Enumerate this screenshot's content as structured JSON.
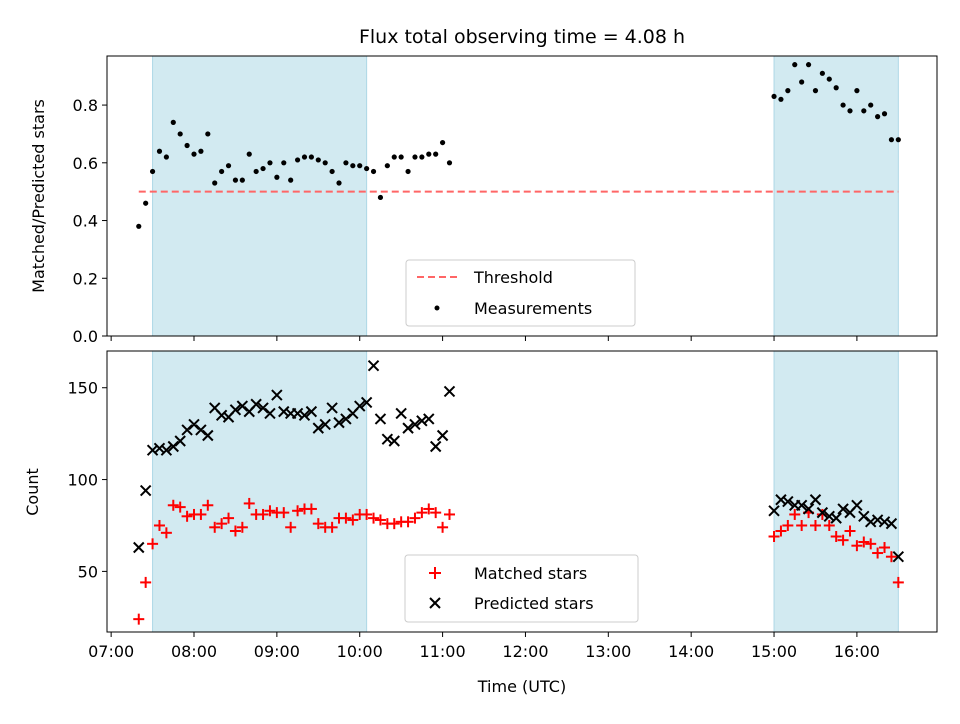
{
  "title": "Flux total observing time = 4.08 h",
  "xlabel": "Time (UTC)",
  "x_ticks": [
    "07:00",
    "08:00",
    "09:00",
    "10:00",
    "11:00",
    "12:00",
    "13:00",
    "14:00",
    "15:00",
    "16:00"
  ],
  "colors": {
    "shade": "#add8e6",
    "threshold": "#ff6666",
    "measurements": "#000000",
    "matched": "#ff0000",
    "predicted": "#000000"
  },
  "chart_data": [
    {
      "type": "scatter",
      "panel": "top",
      "title": "Flux total observing time = 4.08 h",
      "xlabel": "",
      "ylabel": "Matched/Predicted stars",
      "xlim": [
        "06:57",
        "16:58"
      ],
      "ylim": [
        0,
        0.97
      ],
      "y_ticks": [
        "0.0",
        "0.2",
        "0.4",
        "0.6",
        "0.8"
      ],
      "shaded_intervals": [
        [
          "07:30",
          "10:05"
        ],
        [
          "15:00",
          "16:30"
        ]
      ],
      "legend": {
        "placement": "lower center",
        "entries": [
          "Threshold",
          "Measurements"
        ]
      },
      "threshold": {
        "name": "Threshold",
        "y": 0.5,
        "x_range": [
          "07:20",
          "16:30"
        ],
        "style": "dashed"
      },
      "series": [
        {
          "name": "Measurements",
          "marker": "dot",
          "x": [
            "07:20",
            "07:25",
            "07:30",
            "07:35",
            "07:40",
            "07:45",
            "07:50",
            "07:55",
            "08:00",
            "08:05",
            "08:10",
            "08:15",
            "08:20",
            "08:25",
            "08:30",
            "08:35",
            "08:40",
            "08:45",
            "08:50",
            "08:55",
            "09:00",
            "09:05",
            "09:10",
            "09:15",
            "09:20",
            "09:25",
            "09:30",
            "09:35",
            "09:40",
            "09:45",
            "09:50",
            "09:55",
            "10:00",
            "10:05",
            "10:10",
            "10:15",
            "10:20",
            "10:25",
            "10:30",
            "10:35",
            "10:40",
            "10:45",
            "10:50",
            "10:55",
            "11:00",
            "11:05",
            "15:00",
            "15:05",
            "15:10",
            "15:15",
            "15:20",
            "15:25",
            "15:30",
            "15:35",
            "15:40",
            "15:45",
            "15:50",
            "15:55",
            "16:00",
            "16:05",
            "16:10",
            "16:15",
            "16:20",
            "16:25",
            "16:30"
          ],
          "y": [
            0.38,
            0.46,
            0.57,
            0.64,
            0.62,
            0.74,
            0.7,
            0.66,
            0.63,
            0.64,
            0.7,
            0.53,
            0.57,
            0.59,
            0.54,
            0.54,
            0.63,
            0.57,
            0.58,
            0.6,
            0.55,
            0.6,
            0.54,
            0.61,
            0.62,
            0.62,
            0.61,
            0.6,
            0.57,
            0.53,
            0.6,
            0.59,
            0.59,
            0.58,
            0.57,
            0.48,
            0.59,
            0.62,
            0.62,
            0.57,
            0.62,
            0.62,
            0.63,
            0.63,
            0.67,
            0.6,
            0.83,
            0.82,
            0.85,
            0.94,
            0.88,
            0.94,
            0.85,
            0.91,
            0.89,
            0.86,
            0.8,
            0.78,
            0.85,
            0.78,
            0.8,
            0.76,
            0.77,
            0.68,
            0.68
          ]
        }
      ]
    },
    {
      "type": "scatter",
      "panel": "bottom",
      "xlabel": "Time (UTC)",
      "ylabel": "Count",
      "xlim": [
        "06:57",
        "16:58"
      ],
      "ylim": [
        17,
        170
      ],
      "y_ticks": [
        "50",
        "100",
        "150"
      ],
      "shaded_intervals": [
        [
          "07:30",
          "10:05"
        ],
        [
          "15:00",
          "16:30"
        ]
      ],
      "legend": {
        "placement": "lower center",
        "entries": [
          "Matched stars",
          "Predicted stars"
        ]
      },
      "series": [
        {
          "name": "Matched stars",
          "marker": "plus",
          "x": [
            "07:20",
            "07:25",
            "07:30",
            "07:35",
            "07:40",
            "07:45",
            "07:50",
            "07:55",
            "08:00",
            "08:05",
            "08:10",
            "08:15",
            "08:20",
            "08:25",
            "08:30",
            "08:35",
            "08:40",
            "08:45",
            "08:50",
            "08:55",
            "09:00",
            "09:05",
            "09:10",
            "09:15",
            "09:20",
            "09:25",
            "09:30",
            "09:35",
            "09:40",
            "09:45",
            "09:50",
            "09:55",
            "10:00",
            "10:05",
            "10:10",
            "10:15",
            "10:20",
            "10:25",
            "10:30",
            "10:35",
            "10:40",
            "10:45",
            "10:50",
            "10:55",
            "11:00",
            "11:05",
            "15:00",
            "15:05",
            "15:10",
            "15:15",
            "15:20",
            "15:25",
            "15:30",
            "15:35",
            "15:40",
            "15:45",
            "15:50",
            "15:55",
            "16:00",
            "16:05",
            "16:10",
            "16:15",
            "16:20",
            "16:25",
            "16:30"
          ],
          "y": [
            24,
            44,
            65,
            75,
            71,
            86,
            85,
            80,
            81,
            81,
            86,
            74,
            76,
            79,
            72,
            74,
            87,
            81,
            81,
            83,
            82,
            82,
            74,
            83,
            84,
            84,
            76,
            74,
            74,
            79,
            79,
            78,
            81,
            81,
            79,
            78,
            76,
            76,
            77,
            77,
            79,
            82,
            84,
            82,
            74,
            81,
            69,
            72,
            75,
            81,
            75,
            82,
            75,
            81,
            75,
            69,
            67,
            72,
            64,
            66,
            65,
            60,
            63,
            58,
            44
          ]
        },
        {
          "name": "Predicted stars",
          "marker": "x",
          "x": [
            "07:20",
            "07:25",
            "07:30",
            "07:35",
            "07:40",
            "07:45",
            "07:50",
            "07:55",
            "08:00",
            "08:05",
            "08:10",
            "08:15",
            "08:20",
            "08:25",
            "08:30",
            "08:35",
            "08:40",
            "08:45",
            "08:50",
            "08:55",
            "09:00",
            "09:05",
            "09:10",
            "09:15",
            "09:20",
            "09:25",
            "09:30",
            "09:35",
            "09:40",
            "09:45",
            "09:50",
            "09:55",
            "10:00",
            "10:05",
            "10:10",
            "10:15",
            "10:20",
            "10:25",
            "10:30",
            "10:35",
            "10:40",
            "10:45",
            "10:50",
            "10:55",
            "11:00",
            "11:05",
            "15:00",
            "15:05",
            "15:10",
            "15:15",
            "15:20",
            "15:25",
            "15:30",
            "15:35",
            "15:40",
            "15:45",
            "15:50",
            "15:55",
            "16:00",
            "16:05",
            "16:10",
            "16:15",
            "16:20",
            "16:25",
            "16:30"
          ],
          "y": [
            63,
            94,
            116,
            117,
            116,
            118,
            121,
            127,
            130,
            127,
            124,
            139,
            135,
            134,
            138,
            140,
            137,
            141,
            139,
            136,
            146,
            137,
            136,
            136,
            135,
            137,
            128,
            130,
            139,
            131,
            133,
            136,
            140,
            142,
            162,
            133,
            122,
            121,
            136,
            128,
            130,
            132,
            133,
            118,
            124,
            148,
            83,
            89,
            88,
            86,
            86,
            84,
            89,
            82,
            80,
            79,
            84,
            82,
            86,
            80,
            77,
            78,
            77,
            76,
            58
          ]
        }
      ]
    }
  ]
}
